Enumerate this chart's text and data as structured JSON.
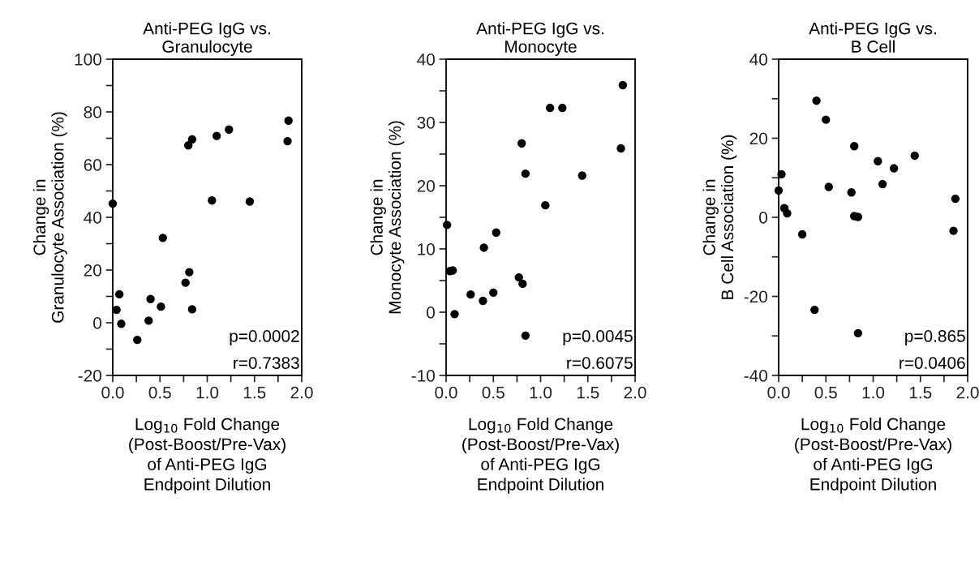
{
  "chart_data": [
    {
      "type": "scatter",
      "title": "Anti-PEG IgG vs.\nGranulocyte",
      "xlabel": "Log$_{10}$ Fold Change\n(Post-Boost/Pre-Vax)\nof Anti-PEG IgG\nEndpoint Dilution",
      "ylabel": "Change in\nGranulocyte Association (%)",
      "annotations": [
        "p=0.0002",
        "r=0.7383"
      ],
      "marker": "circle",
      "grid": false,
      "xlim": [
        0,
        2
      ],
      "ylim": [
        -20,
        100
      ],
      "xticks": [
        {
          "value": 0,
          "label": "0.0"
        },
        {
          "value": 0.25,
          "label": null
        },
        {
          "value": 0.5,
          "label": "0.5"
        },
        {
          "value": 0.75,
          "label": null
        },
        {
          "value": 1,
          "label": "1.0"
        },
        {
          "value": 1.25,
          "label": null
        },
        {
          "value": 1.5,
          "label": "1.5"
        },
        {
          "value": 1.75,
          "label": null
        },
        {
          "value": 2,
          "label": "2.0"
        }
      ],
      "yticks": [
        -20,
        {
          "value": -10,
          "label": null
        },
        0,
        {
          "value": 10,
          "label": null
        },
        20,
        {
          "value": 30,
          "label": null
        },
        40,
        {
          "value": 50,
          "label": null
        },
        60,
        {
          "value": 70,
          "label": null
        },
        80,
        {
          "value": 90,
          "label": null
        },
        100
      ],
      "series": [
        {
          "color": "#000000",
          "x": [
            0.0,
            0.04,
            0.07,
            0.09,
            0.26,
            0.38,
            0.4,
            0.51,
            0.53,
            0.77,
            0.81,
            0.8,
            0.84,
            0.84,
            1.05,
            1.1,
            1.23,
            1.45,
            1.85,
            1.86
          ],
          "values": [
            45.2,
            4.9,
            10.8,
            -0.4,
            -6.5,
            0.8,
            9.0,
            6.1,
            32.2,
            15.2,
            19.2,
            67.3,
            69.6,
            5.1,
            46.4,
            70.9,
            73.3,
            46.0,
            68.9,
            76.7
          ]
        }
      ]
    },
    {
      "type": "scatter",
      "title": "Anti-PEG IgG vs.\nMonocyte",
      "xlabel": "Log$_{10}$ Fold Change\n(Post-Boost/Pre-Vax)\nof Anti-PEG IgG\nEndpoint Dilution",
      "ylabel": "Change in\nMonocyte Association (%)",
      "annotations": [
        "p=0.0045",
        "r=0.6075"
      ],
      "marker": "circle",
      "grid": false,
      "xlim": [
        0,
        2
      ],
      "ylim": [
        -10,
        40
      ],
      "xticks": [
        {
          "value": 0,
          "label": "0.0"
        },
        {
          "value": 0.25,
          "label": null
        },
        {
          "value": 0.5,
          "label": "0.5"
        },
        {
          "value": 0.75,
          "label": null
        },
        {
          "value": 1,
          "label": "1.0"
        },
        {
          "value": 1.25,
          "label": null
        },
        {
          "value": 1.5,
          "label": "1.5"
        },
        {
          "value": 1.75,
          "label": null
        },
        {
          "value": 2,
          "label": "2.0"
        }
      ],
      "yticks": [
        -10,
        {
          "value": -5,
          "label": null
        },
        0,
        {
          "value": 5,
          "label": null
        },
        10,
        {
          "value": 15,
          "label": null
        },
        20,
        {
          "value": 25,
          "label": null
        },
        30,
        {
          "value": 35,
          "label": null
        },
        40
      ],
      "series": [
        {
          "color": "#000000",
          "x": [
            0.01,
            0.04,
            0.07,
            0.09,
            0.26,
            0.39,
            0.4,
            0.5,
            0.53,
            0.77,
            0.81,
            0.8,
            0.84,
            0.84,
            1.05,
            1.1,
            1.23,
            1.44,
            1.85,
            1.87
          ],
          "values": [
            13.8,
            6.5,
            6.6,
            -0.3,
            2.8,
            1.8,
            10.2,
            3.1,
            12.6,
            5.5,
            4.5,
            26.7,
            21.9,
            -3.7,
            16.9,
            32.3,
            32.3,
            21.6,
            25.9,
            35.9
          ]
        }
      ]
    },
    {
      "type": "scatter",
      "title": "Anti-PEG IgG vs.\nB Cell",
      "xlabel": "Log$_{10}$ Fold Change\n(Post-Boost/Pre-Vax)\nof Anti-PEG IgG\nEndpoint Dilution",
      "ylabel": "Change in\nB Cell Association (%)",
      "annotations": [
        "p=0.865",
        "r=0.0406"
      ],
      "marker": "circle",
      "grid": false,
      "xlim": [
        0,
        2
      ],
      "ylim": [
        -40,
        40
      ],
      "xticks": [
        {
          "value": 0,
          "label": "0.0"
        },
        {
          "value": 0.25,
          "label": null
        },
        {
          "value": 0.5,
          "label": "0.5"
        },
        {
          "value": 0.75,
          "label": null
        },
        {
          "value": 1,
          "label": "1.0"
        },
        {
          "value": 1.25,
          "label": null
        },
        {
          "value": 1.5,
          "label": "1.5"
        },
        {
          "value": 1.75,
          "label": null
        },
        {
          "value": 2,
          "label": "2.0"
        }
      ],
      "yticks": [
        -40,
        {
          "value": -30,
          "label": null
        },
        -20,
        {
          "value": -10,
          "label": null
        },
        0,
        {
          "value": 10,
          "label": null
        },
        20,
        {
          "value": 30,
          "label": null
        },
        40
      ],
      "series": [
        {
          "color": "#000000",
          "x": [
            0.0,
            0.03,
            0.06,
            0.09,
            0.25,
            0.38,
            0.4,
            0.5,
            0.53,
            0.77,
            0.8,
            0.8,
            0.84,
            0.84,
            1.05,
            1.1,
            1.22,
            1.44,
            1.85,
            1.87
          ],
          "values": [
            6.8,
            10.9,
            2.3,
            1.0,
            -4.3,
            -23.4,
            29.5,
            24.7,
            7.7,
            6.3,
            18.0,
            0.3,
            0.1,
            -29.3,
            14.2,
            8.4,
            12.4,
            15.6,
            -3.4,
            4.7
          ]
        }
      ]
    }
  ]
}
